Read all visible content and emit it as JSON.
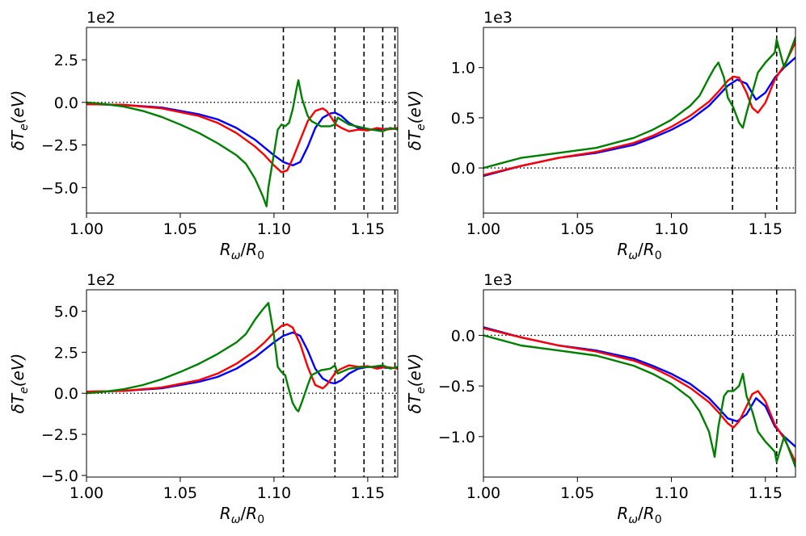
{
  "colors": {
    "blue": "#0000ff",
    "red": "#ff0000",
    "green": "#008000",
    "black": "#000000"
  },
  "chart_data": [
    {
      "type": "line",
      "title": "",
      "xlabel_main": "R",
      "xlabel_sub": "ω",
      "xlabel_den": "R",
      "xlabel_den_sub": "0",
      "ylabel_main": "δT",
      "ylabel_sub": "e",
      "ylabel_unit": "(eV)",
      "scale_label": "1e2",
      "xlim": [
        1.0,
        1.166
      ],
      "ylim": [
        -6.5,
        4.4
      ],
      "xticks": [
        1.0,
        1.05,
        1.1,
        1.15
      ],
      "xtick_labels": [
        "1.00",
        "1.05",
        "1.10",
        "1.15"
      ],
      "yticks": [
        -5.0,
        -2.5,
        0.0,
        2.5
      ],
      "ytick_labels": [
        "−5.0",
        "−2.5",
        "0.0",
        "2.5"
      ],
      "hline": 0,
      "vlines": [
        1.105,
        1.1325,
        1.148,
        1.158,
        1.1645
      ],
      "series": [
        {
          "name": "blue",
          "color": "#0000ff",
          "x": [
            1.0,
            1.02,
            1.04,
            1.06,
            1.07,
            1.08,
            1.09,
            1.1,
            1.105,
            1.11,
            1.114,
            1.118,
            1.122,
            1.126,
            1.13,
            1.1325,
            1.136,
            1.14,
            1.145,
            1.15,
            1.155,
            1.16,
            1.166
          ],
          "y": [
            -0.1,
            -0.15,
            -0.3,
            -0.7,
            -1.0,
            -1.5,
            -2.2,
            -3.1,
            -3.5,
            -3.7,
            -3.5,
            -2.6,
            -1.5,
            -0.9,
            -0.65,
            -0.6,
            -0.8,
            -1.2,
            -1.5,
            -1.6,
            -1.6,
            -1.55,
            -1.55
          ]
        },
        {
          "name": "red",
          "color": "#ff0000",
          "x": [
            1.0,
            1.02,
            1.04,
            1.06,
            1.07,
            1.08,
            1.09,
            1.095,
            1.1,
            1.104,
            1.107,
            1.11,
            1.114,
            1.118,
            1.122,
            1.126,
            1.128,
            1.13,
            1.133,
            1.136,
            1.14,
            1.145,
            1.15,
            1.155,
            1.16,
            1.166
          ],
          "y": [
            -0.1,
            -0.15,
            -0.35,
            -0.8,
            -1.2,
            -1.8,
            -2.6,
            -3.1,
            -3.7,
            -4.1,
            -4.0,
            -3.3,
            -2.2,
            -1.1,
            -0.5,
            -0.35,
            -0.5,
            -0.8,
            -1.3,
            -1.5,
            -1.7,
            -1.6,
            -1.65,
            -1.5,
            -1.6,
            -1.5
          ]
        },
        {
          "name": "green",
          "color": "#008000",
          "x": [
            1.0,
            1.01,
            1.02,
            1.03,
            1.04,
            1.05,
            1.06,
            1.07,
            1.08,
            1.085,
            1.09,
            1.094,
            1.096,
            1.097,
            1.1,
            1.102,
            1.104,
            1.106,
            1.108,
            1.11,
            1.112,
            1.113,
            1.115,
            1.118,
            1.12,
            1.125,
            1.13,
            1.1325,
            1.134,
            1.14,
            1.148,
            1.152,
            1.158,
            1.162,
            1.166
          ],
          "y": [
            0.0,
            -0.1,
            -0.25,
            -0.5,
            -0.85,
            -1.3,
            -1.8,
            -2.4,
            -3.1,
            -3.6,
            -4.5,
            -5.5,
            -6.1,
            -5.0,
            -3.0,
            -1.6,
            -1.3,
            -1.4,
            -1.2,
            -0.4,
            0.8,
            1.3,
            0.2,
            -0.8,
            -1.1,
            -1.4,
            -1.4,
            -1.3,
            -0.9,
            -1.3,
            -1.5,
            -1.6,
            -1.7,
            -1.5,
            -1.6
          ]
        }
      ]
    },
    {
      "type": "line",
      "title": "",
      "xlabel_main": "R",
      "xlabel_sub": "ω",
      "xlabel_den": "R",
      "xlabel_den_sub": "0",
      "ylabel_main": "δT",
      "ylabel_sub": "e",
      "ylabel_unit": "(eV)",
      "scale_label": "1e3",
      "xlim": [
        1.0,
        1.166
      ],
      "ylim": [
        -0.45,
        1.4
      ],
      "xticks": [
        1.0,
        1.05,
        1.1,
        1.15
      ],
      "xtick_labels": [
        "1.00",
        "1.05",
        "1.10",
        "1.15"
      ],
      "yticks": [
        0.0,
        0.5,
        1.0
      ],
      "ytick_labels": [
        "0.0",
        "0.5",
        "1.0"
      ],
      "hline": 0,
      "vlines": [
        1.1325,
        1.156
      ],
      "series": [
        {
          "name": "blue",
          "color": "#0000ff",
          "x": [
            1.0,
            1.02,
            1.04,
            1.06,
            1.08,
            1.09,
            1.1,
            1.11,
            1.12,
            1.125,
            1.13,
            1.135,
            1.14,
            1.145,
            1.15,
            1.155,
            1.16,
            1.166
          ],
          "y": [
            -0.08,
            0.02,
            0.1,
            0.15,
            0.23,
            0.3,
            0.38,
            0.48,
            0.62,
            0.72,
            0.82,
            0.88,
            0.84,
            0.68,
            0.75,
            0.9,
            1.0,
            1.1
          ]
        },
        {
          "name": "red",
          "color": "#ff0000",
          "x": [
            1.0,
            1.02,
            1.04,
            1.06,
            1.08,
            1.09,
            1.1,
            1.11,
            1.12,
            1.125,
            1.13,
            1.133,
            1.136,
            1.14,
            1.143,
            1.146,
            1.15,
            1.155,
            1.16,
            1.166
          ],
          "y": [
            -0.07,
            0.02,
            0.1,
            0.16,
            0.25,
            0.32,
            0.41,
            0.52,
            0.66,
            0.76,
            0.87,
            0.91,
            0.9,
            0.75,
            0.6,
            0.55,
            0.65,
            0.88,
            1.02,
            1.25
          ]
        },
        {
          "name": "green",
          "color": "#008000",
          "x": [
            1.0,
            1.01,
            1.02,
            1.04,
            1.06,
            1.08,
            1.09,
            1.1,
            1.11,
            1.115,
            1.12,
            1.123,
            1.125,
            1.128,
            1.13,
            1.133,
            1.136,
            1.138,
            1.14,
            1.143,
            1.146,
            1.15,
            1.155,
            1.156,
            1.16,
            1.166
          ],
          "y": [
            0.0,
            0.05,
            0.1,
            0.15,
            0.2,
            0.3,
            0.38,
            0.48,
            0.62,
            0.72,
            0.9,
            1.0,
            1.05,
            0.9,
            0.7,
            0.6,
            0.45,
            0.4,
            0.55,
            0.75,
            0.95,
            1.05,
            1.15,
            1.28,
            1.0,
            1.3
          ]
        }
      ]
    },
    {
      "type": "line",
      "title": "",
      "xlabel_main": "R",
      "xlabel_sub": "ω",
      "xlabel_den": "R",
      "xlabel_den_sub": "0",
      "ylabel_main": "δT",
      "ylabel_sub": "e",
      "ylabel_unit": "(eV)",
      "scale_label": "1e2",
      "xlim": [
        1.0,
        1.166
      ],
      "ylim": [
        -5.1,
        6.3
      ],
      "xticks": [
        1.0,
        1.05,
        1.1,
        1.15
      ],
      "xtick_labels": [
        "1.00",
        "1.05",
        "1.10",
        "1.15"
      ],
      "yticks": [
        -5.0,
        -2.5,
        0.0,
        2.5,
        5.0
      ],
      "ytick_labels": [
        "−5.0",
        "−2.5",
        "0.0",
        "2.5",
        "5.0"
      ],
      "hline": 0,
      "vlines": [
        1.105,
        1.1325,
        1.148,
        1.158,
        1.1645
      ],
      "series": [
        {
          "name": "blue",
          "color": "#0000ff",
          "x": [
            1.0,
            1.02,
            1.04,
            1.06,
            1.07,
            1.08,
            1.09,
            1.1,
            1.105,
            1.11,
            1.114,
            1.118,
            1.122,
            1.126,
            1.13,
            1.1325,
            1.136,
            1.14,
            1.145,
            1.15,
            1.155,
            1.16,
            1.166
          ],
          "y": [
            0.1,
            0.15,
            0.3,
            0.7,
            1.0,
            1.5,
            2.2,
            3.1,
            3.5,
            3.7,
            3.5,
            2.6,
            1.5,
            0.9,
            0.65,
            0.6,
            0.8,
            1.2,
            1.5,
            1.6,
            1.6,
            1.55,
            1.55
          ]
        },
        {
          "name": "red",
          "color": "#ff0000",
          "x": [
            1.0,
            1.02,
            1.04,
            1.06,
            1.07,
            1.08,
            1.09,
            1.095,
            1.1,
            1.104,
            1.107,
            1.11,
            1.114,
            1.118,
            1.122,
            1.126,
            1.128,
            1.13,
            1.133,
            1.136,
            1.14,
            1.145,
            1.15,
            1.155,
            1.16,
            1.166
          ],
          "y": [
            0.1,
            0.15,
            0.35,
            0.8,
            1.2,
            1.8,
            2.6,
            3.1,
            3.7,
            4.1,
            4.2,
            4.0,
            3.0,
            1.6,
            0.5,
            0.3,
            0.5,
            0.8,
            1.3,
            1.5,
            1.7,
            1.6,
            1.65,
            1.5,
            1.6,
            1.5
          ]
        },
        {
          "name": "green",
          "color": "#008000",
          "x": [
            1.0,
            1.01,
            1.02,
            1.03,
            1.04,
            1.05,
            1.06,
            1.07,
            1.08,
            1.085,
            1.09,
            1.094,
            1.097,
            1.1,
            1.102,
            1.104,
            1.106,
            1.108,
            1.11,
            1.112,
            1.113,
            1.115,
            1.118,
            1.12,
            1.125,
            1.13,
            1.1325,
            1.134,
            1.14,
            1.148,
            1.152,
            1.158,
            1.162,
            1.166
          ],
          "y": [
            0.0,
            0.1,
            0.25,
            0.5,
            0.85,
            1.3,
            1.8,
            2.4,
            3.1,
            3.6,
            4.5,
            5.1,
            5.5,
            3.5,
            1.6,
            1.3,
            1.1,
            0.2,
            -0.6,
            -1.0,
            -1.1,
            -0.5,
            0.5,
            1.1,
            1.4,
            1.5,
            1.7,
            1.2,
            1.5,
            1.6,
            1.6,
            1.7,
            1.5,
            1.6
          ]
        }
      ]
    },
    {
      "type": "line",
      "title": "",
      "xlabel_main": "R",
      "xlabel_sub": "ω",
      "xlabel_den": "R",
      "xlabel_den_sub": "0",
      "ylabel_main": "δT",
      "ylabel_sub": "e",
      "ylabel_unit": "(eV)",
      "scale_label": "1e3",
      "xlim": [
        1.0,
        1.166
      ],
      "ylim": [
        -1.4,
        0.45
      ],
      "xticks": [
        1.0,
        1.05,
        1.1,
        1.15
      ],
      "xtick_labels": [
        "1.00",
        "1.05",
        "1.10",
        "1.15"
      ],
      "yticks": [
        -1.0,
        -0.5,
        0.0
      ],
      "ytick_labels": [
        "−1.0",
        "−0.5",
        "0.0"
      ],
      "hline": 0,
      "vlines": [
        1.1325,
        1.156
      ],
      "series": [
        {
          "name": "blue",
          "color": "#0000ff",
          "x": [
            1.0,
            1.02,
            1.04,
            1.06,
            1.08,
            1.09,
            1.1,
            1.11,
            1.12,
            1.125,
            1.13,
            1.135,
            1.14,
            1.145,
            1.15,
            1.155,
            1.16,
            1.166
          ],
          "y": [
            0.08,
            -0.02,
            -0.1,
            -0.15,
            -0.23,
            -0.3,
            -0.38,
            -0.48,
            -0.62,
            -0.72,
            -0.82,
            -0.85,
            -0.78,
            -0.62,
            -0.7,
            -0.9,
            -1.0,
            -1.1
          ]
        },
        {
          "name": "red",
          "color": "#ff0000",
          "x": [
            1.0,
            1.02,
            1.04,
            1.06,
            1.08,
            1.09,
            1.1,
            1.11,
            1.12,
            1.125,
            1.13,
            1.133,
            1.136,
            1.14,
            1.143,
            1.146,
            1.15,
            1.155,
            1.16,
            1.166
          ],
          "y": [
            0.07,
            -0.02,
            -0.1,
            -0.16,
            -0.25,
            -0.32,
            -0.41,
            -0.52,
            -0.66,
            -0.76,
            -0.87,
            -0.91,
            -0.85,
            -0.7,
            -0.58,
            -0.55,
            -0.65,
            -0.88,
            -1.02,
            -1.25
          ]
        },
        {
          "name": "green",
          "color": "#008000",
          "x": [
            1.0,
            1.01,
            1.02,
            1.04,
            1.06,
            1.08,
            1.09,
            1.1,
            1.11,
            1.115,
            1.12,
            1.123,
            1.125,
            1.128,
            1.13,
            1.133,
            1.136,
            1.138,
            1.14,
            1.143,
            1.146,
            1.15,
            1.155,
            1.156,
            1.16,
            1.166
          ],
          "y": [
            0.0,
            -0.05,
            -0.1,
            -0.15,
            -0.2,
            -0.3,
            -0.38,
            -0.48,
            -0.62,
            -0.75,
            -0.95,
            -1.2,
            -0.9,
            -0.6,
            -0.55,
            -0.55,
            -0.5,
            -0.38,
            -0.6,
            -0.75,
            -0.95,
            -1.05,
            -1.15,
            -1.25,
            -1.0,
            -1.3
          ]
        }
      ]
    }
  ]
}
